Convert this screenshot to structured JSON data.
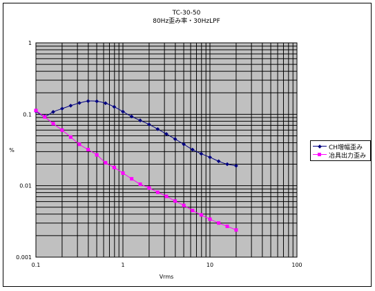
{
  "chart_data": {
    "type": "line",
    "title": "TC-30-50",
    "subtitle": "80Hz歪み率・30HzLPF",
    "xlabel": "Vrms",
    "ylabel": "%",
    "xscale": "log",
    "yscale": "log",
    "xlim": [
      0.1,
      100
    ],
    "ylim": [
      0.001,
      1
    ],
    "x_tick_labels": [
      "0.1",
      "1",
      "10",
      "100"
    ],
    "y_tick_labels": [
      "0.001",
      "0.01",
      "0.1",
      "1"
    ],
    "grid": true,
    "plot_background": "#c0c0c0",
    "legend_position": "right",
    "series": [
      {
        "name": "CH増幅歪み",
        "color": "#000080",
        "marker": "diamond",
        "x": [
          0.1,
          0.126,
          0.158,
          0.2,
          0.251,
          0.316,
          0.398,
          0.501,
          0.631,
          0.794,
          1.0,
          1.26,
          1.58,
          2.0,
          2.51,
          3.16,
          3.98,
          5.01,
          6.31,
          7.94,
          10.0,
          12.6,
          15.8,
          20.0
        ],
        "y": [
          0.11,
          0.094,
          0.108,
          0.12,
          0.132,
          0.144,
          0.153,
          0.152,
          0.143,
          0.127,
          0.109,
          0.093,
          0.082,
          0.072,
          0.062,
          0.053,
          0.045,
          0.038,
          0.032,
          0.028,
          0.025,
          0.022,
          0.02,
          0.019
        ]
      },
      {
        "name": "冶具出力歪み",
        "color": "#ff00ff",
        "marker": "square",
        "x": [
          0.1,
          0.126,
          0.158,
          0.2,
          0.251,
          0.316,
          0.398,
          0.501,
          0.631,
          0.794,
          1.0,
          1.26,
          1.58,
          2.0,
          2.51,
          3.16,
          3.98,
          5.01,
          6.31,
          7.94,
          10.0,
          12.6,
          15.8,
          20.0
        ],
        "y": [
          0.113,
          0.092,
          0.074,
          0.06,
          0.048,
          0.038,
          0.032,
          0.027,
          0.021,
          0.018,
          0.015,
          0.0125,
          0.0105,
          0.0093,
          0.0081,
          0.0071,
          0.0061,
          0.0053,
          0.0045,
          0.0039,
          0.0034,
          0.003,
          0.0027,
          0.0024
        ]
      }
    ]
  }
}
